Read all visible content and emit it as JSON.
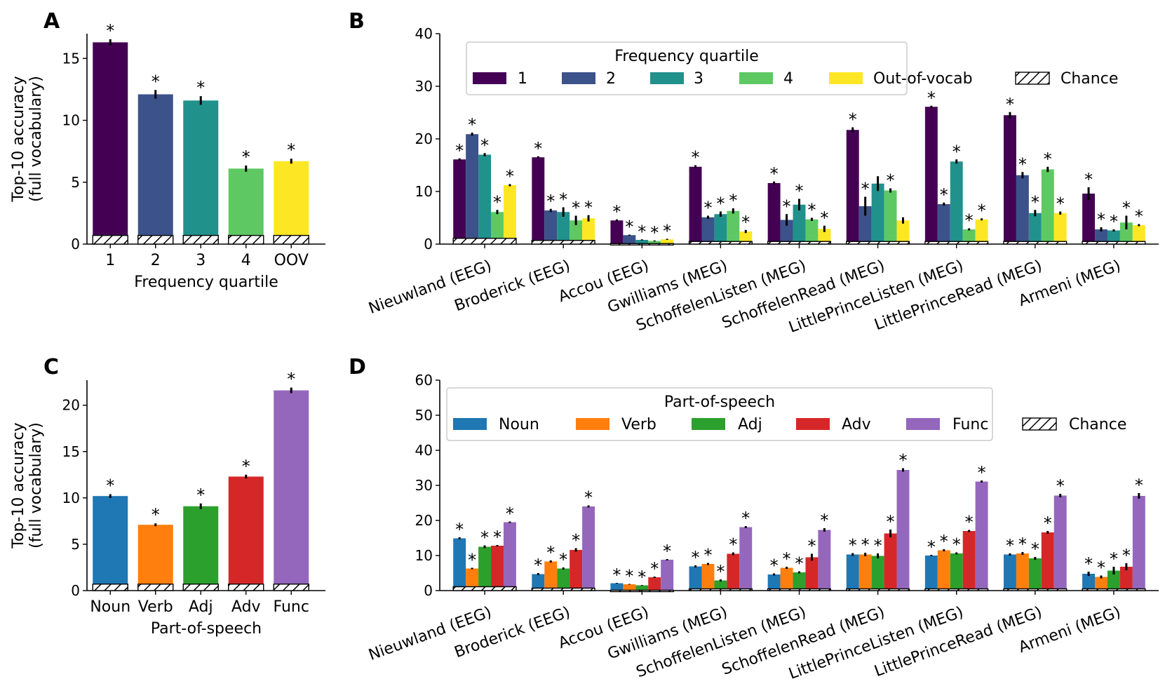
{
  "chart_data": [
    {
      "panel": "A",
      "type": "bar",
      "xlabel": "Frequency quartile",
      "ylabel": [
        "Top-10 accuracy",
        "(full vocabulary)"
      ],
      "ylim": [
        0,
        17
      ],
      "yticks": [
        0,
        5,
        10,
        15
      ],
      "categories": [
        "1",
        "2",
        "3",
        "4",
        "OOV"
      ],
      "values": [
        16.3,
        12.1,
        11.6,
        6.1,
        6.7
      ],
      "errors": [
        0.25,
        0.35,
        0.35,
        0.25,
        0.2
      ],
      "chance": 0.7,
      "significant": [
        true,
        true,
        true,
        true,
        true
      ],
      "colors": [
        "#440154",
        "#3b528b",
        "#21918c",
        "#5ec962",
        "#fde725"
      ]
    },
    {
      "panel": "B",
      "type": "bar",
      "ylim": [
        0,
        40
      ],
      "yticks": [
        0,
        10,
        20,
        30,
        40
      ],
      "categories": [
        "Nieuwland (EEG)",
        "Broderick (EEG)",
        "Accou (EEG)",
        "Gwilliams (MEG)",
        "SchoffelenListen (MEG)",
        "SchoffelenRead (MEG)",
        "LittlePrinceListen (MEG)",
        "LittlePrinceRead (MEG)",
        "Armeni (MEG)"
      ],
      "legend_title": "Frequency quartile",
      "legend_position": "top",
      "chance_label": "Chance",
      "series": [
        {
          "name": "1",
          "color": "#440154",
          "values": [
            16.1,
            16.5,
            4.5,
            14.7,
            11.6,
            21.7,
            26.1,
            24.5,
            9.6
          ],
          "errors": [
            0.2,
            0.2,
            0.2,
            0.3,
            0.3,
            0.5,
            0.2,
            0.6,
            1.2
          ],
          "significant": [
            true,
            true,
            true,
            true,
            true,
            true,
            true,
            true,
            true
          ]
        },
        {
          "name": "2",
          "color": "#3b528b",
          "values": [
            20.9,
            6.4,
            1.7,
            5.1,
            4.6,
            7.2,
            7.6,
            13.1,
            2.8
          ],
          "errors": [
            0.3,
            0.3,
            0.1,
            0.3,
            1.1,
            1.8,
            0.3,
            0.6,
            0.4
          ],
          "significant": [
            true,
            true,
            true,
            true,
            true,
            true,
            true,
            true,
            true
          ]
        },
        {
          "name": "3",
          "color": "#21918c",
          "values": [
            17.0,
            6.1,
            0.8,
            5.7,
            7.5,
            11.5,
            15.7,
            5.9,
            2.6
          ],
          "errors": [
            0.3,
            0.9,
            0.1,
            0.5,
            1.1,
            1.4,
            0.4,
            0.6,
            0.2
          ],
          "significant": [
            true,
            true,
            true,
            true,
            true,
            false,
            true,
            true,
            true
          ]
        },
        {
          "name": "4",
          "color": "#5ec962",
          "values": [
            6.1,
            4.5,
            0.6,
            6.3,
            4.7,
            10.2,
            2.8,
            14.2,
            4.1
          ],
          "errors": [
            0.4,
            0.9,
            0.1,
            0.5,
            0.3,
            0.4,
            0.2,
            0.5,
            1.3
          ],
          "significant": [
            true,
            true,
            true,
            true,
            true,
            true,
            true,
            true,
            true
          ]
        },
        {
          "name": "Out-of-vocab",
          "color": "#fde725",
          "values": [
            11.2,
            4.9,
            0.9,
            2.4,
            2.9,
            4.5,
            4.7,
            5.9,
            3.6
          ],
          "errors": [
            0.2,
            0.6,
            0.1,
            0.3,
            0.6,
            0.6,
            0.2,
            0.3,
            0.2
          ],
          "significant": [
            true,
            true,
            true,
            true,
            true,
            false,
            true,
            true,
            true
          ]
        }
      ],
      "chance": [
        1.1,
        0.7,
        0.1,
        0.5,
        0.5,
        0.5,
        0.5,
        0.5,
        0.5
      ]
    },
    {
      "panel": "C",
      "type": "bar",
      "xlabel": "Part-of-speech",
      "ylabel": [
        "Top-10 accuracy",
        "(full vocabulary)"
      ],
      "ylim": [
        0,
        22.7
      ],
      "yticks": [
        0,
        5,
        10,
        15,
        20
      ],
      "categories": [
        "Noun",
        "Verb",
        "Adj",
        "Adv",
        "Func"
      ],
      "values": [
        10.2,
        7.1,
        9.1,
        12.3,
        21.6
      ],
      "errors": [
        0.2,
        0.15,
        0.3,
        0.2,
        0.3
      ],
      "chance": 0.7,
      "significant": [
        true,
        true,
        true,
        true,
        true
      ],
      "colors": [
        "#1f77b4",
        "#ff7f0e",
        "#2ca02c",
        "#d62728",
        "#9467bd"
      ]
    },
    {
      "panel": "D",
      "type": "bar",
      "ylim": [
        0,
        60
      ],
      "yticks": [
        0,
        10,
        20,
        30,
        40,
        50,
        60
      ],
      "categories": [
        "Nieuwland (EEG)",
        "Broderick (EEG)",
        "Accou (EEG)",
        "Gwilliams (MEG)",
        "SchoffelenListen (MEG)",
        "SchoffelenRead (MEG)",
        "LittlePrinceListen (MEG)",
        "LittlePrinceRead (MEG)",
        "Armeni (MEG)"
      ],
      "legend_title": "Part-of-speech",
      "legend_position": "top",
      "chance_label": "Chance",
      "series": [
        {
          "name": "Noun",
          "color": "#1f77b4",
          "values": [
            14.9,
            4.7,
            2.1,
            6.9,
            4.6,
            10.3,
            10.0,
            10.3,
            4.8
          ],
          "errors": [
            0.3,
            0.3,
            0.1,
            0.3,
            0.3,
            0.4,
            0.2,
            0.3,
            0.6
          ],
          "significant": [
            true,
            true,
            true,
            true,
            true,
            true,
            true,
            true,
            true
          ]
        },
        {
          "name": "Verb",
          "color": "#ff7f0e",
          "values": [
            6.3,
            8.3,
            1.8,
            7.6,
            6.5,
            10.3,
            11.5,
            10.6,
            3.9
          ],
          "errors": [
            0.2,
            0.3,
            0.1,
            0.3,
            0.3,
            0.5,
            0.3,
            0.4,
            0.4
          ],
          "significant": [
            true,
            true,
            true,
            true,
            true,
            true,
            true,
            true,
            true
          ]
        },
        {
          "name": "Adj",
          "color": "#2ca02c",
          "values": [
            12.5,
            6.3,
            1.5,
            2.9,
            5.2,
            9.9,
            10.6,
            9.2,
            5.7
          ],
          "errors": [
            0.4,
            0.3,
            0.1,
            0.3,
            0.3,
            0.7,
            0.3,
            0.4,
            1.1
          ],
          "significant": [
            true,
            true,
            true,
            true,
            true,
            true,
            true,
            true,
            true
          ]
        },
        {
          "name": "Adv",
          "color": "#d62728",
          "values": [
            12.8,
            11.6,
            3.8,
            10.5,
            9.5,
            16.3,
            17.0,
            16.6,
            6.8
          ],
          "errors": [
            0.2,
            0.5,
            0.2,
            0.4,
            1.0,
            1.1,
            0.3,
            0.4,
            1.0
          ],
          "significant": [
            true,
            true,
            true,
            true,
            true,
            true,
            true,
            true,
            true
          ]
        },
        {
          "name": "Func",
          "color": "#9467bd",
          "values": [
            19.5,
            24.0,
            8.8,
            18.1,
            17.3,
            34.4,
            31.1,
            27.1,
            27.0
          ],
          "errors": [
            0.2,
            0.3,
            0.2,
            0.3,
            0.5,
            0.5,
            0.3,
            0.5,
            0.8
          ],
          "significant": [
            true,
            true,
            true,
            true,
            true,
            true,
            true,
            true,
            true
          ]
        }
      ],
      "chance": [
        1.1,
        0.7,
        0.1,
        0.5,
        0.5,
        0.5,
        0.5,
        0.5,
        0.5
      ]
    }
  ],
  "panels": [
    "A",
    "B",
    "C",
    "D"
  ],
  "star": "*"
}
